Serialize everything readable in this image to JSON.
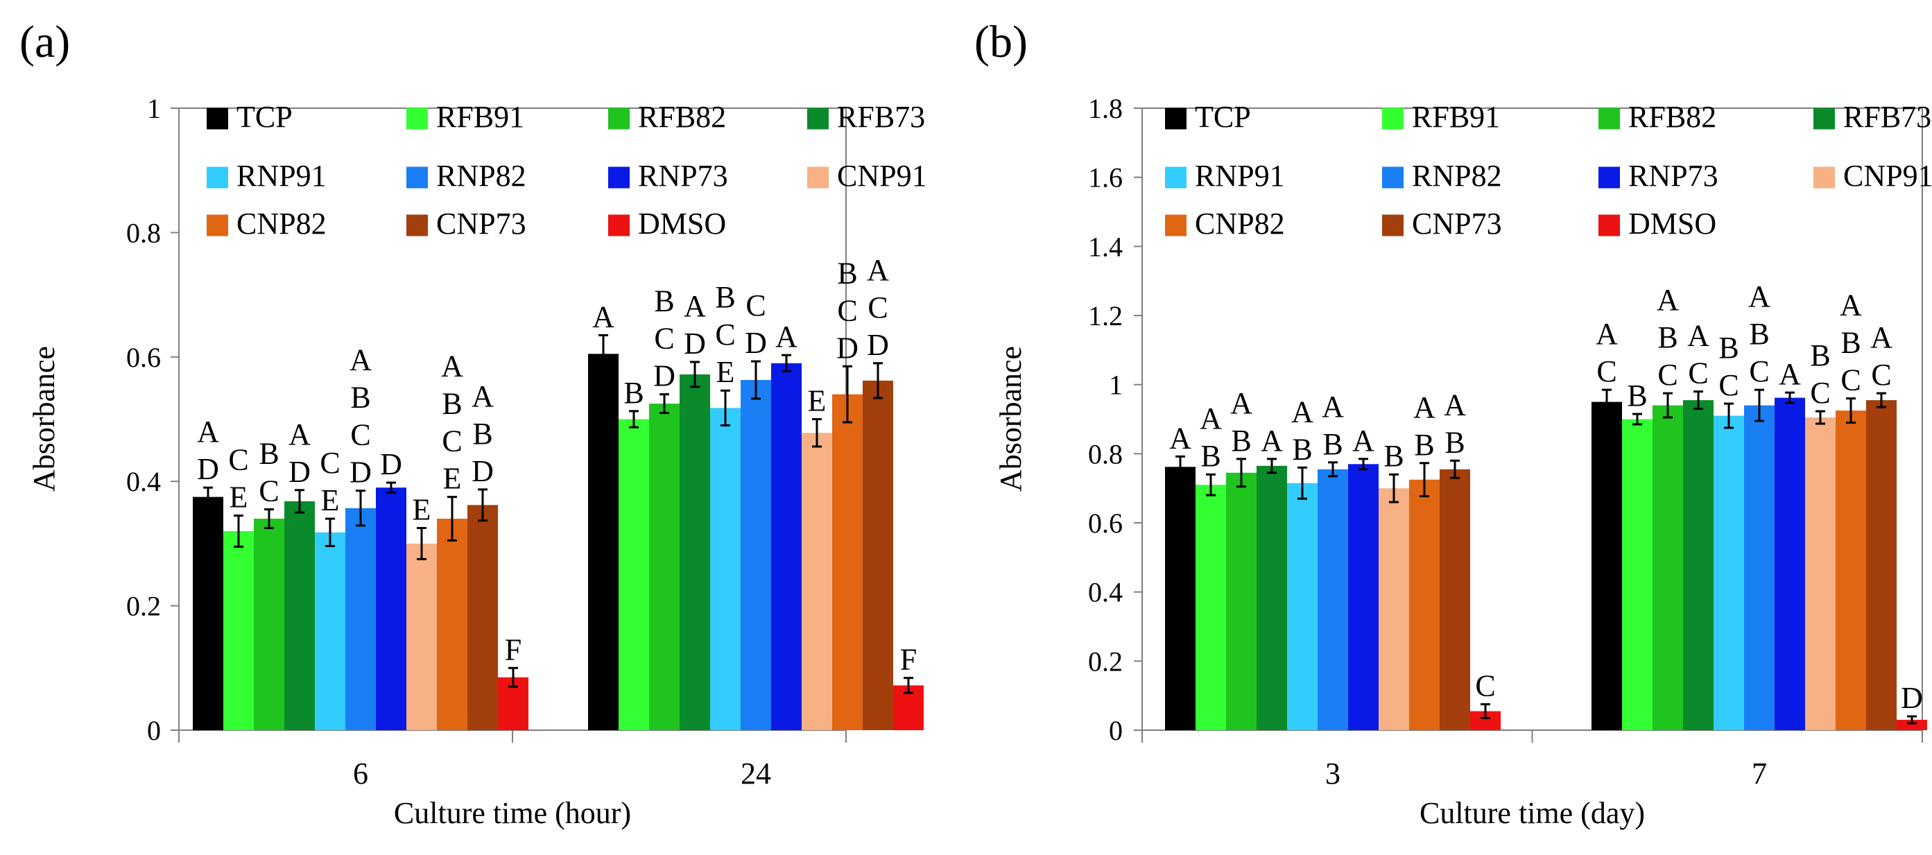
{
  "colors": {
    "TCP": "#000000",
    "RFB91": "#33ff33",
    "RFB82": "#1fc41f",
    "RFB73": "#0a8a2a",
    "RNP91": "#33ccff",
    "RNP82": "#1a7ef5",
    "RNP73": "#0a1ae6",
    "CNP91": "#f7b184",
    "CNP82": "#e06614",
    "CNP73": "#a33f0c",
    "DMSO": "#ee1111"
  },
  "chart_data": [
    {
      "panel": "(a)",
      "type": "bar",
      "xlabel": "Culture time (hour)",
      "ylabel": "Absorbance",
      "ylim": [
        0,
        1
      ],
      "yticks": [
        "0",
        "0.2",
        "0.4",
        "0.6",
        "0.8",
        "1"
      ],
      "legend": [
        "TCP",
        "RFB91",
        "RFB82",
        "RFB73",
        "RNP91",
        "RNP82",
        "RNP73",
        "CNP91",
        "CNP82",
        "CNP73",
        "DMSO"
      ],
      "legend_position": "top",
      "categories": [
        "6",
        "24"
      ],
      "series": [
        {
          "name": "TCP",
          "values": [
            0.375,
            0.605
          ],
          "errors": [
            0.015,
            0.03
          ],
          "labels": [
            "A\nD",
            "A"
          ]
        },
        {
          "name": "RFB91",
          "values": [
            0.32,
            0.5
          ],
          "errors": [
            0.025,
            0.013
          ],
          "labels": [
            "C\nE",
            "B"
          ]
        },
        {
          "name": "RFB82",
          "values": [
            0.34,
            0.525
          ],
          "errors": [
            0.015,
            0.015
          ],
          "labels": [
            "B\nC",
            "B\nC\nD"
          ]
        },
        {
          "name": "RFB73",
          "values": [
            0.368,
            0.572
          ],
          "errors": [
            0.018,
            0.02
          ],
          "labels": [
            "A\nD",
            "A\nD"
          ]
        },
        {
          "name": "RNP91",
          "values": [
            0.318,
            0.518
          ],
          "errors": [
            0.022,
            0.028
          ],
          "labels": [
            "C\nE",
            "B\nC\nE"
          ]
        },
        {
          "name": "RNP82",
          "values": [
            0.357,
            0.563
          ],
          "errors": [
            0.028,
            0.03
          ],
          "labels": [
            "A\nB\nC\nD",
            "C\nD"
          ]
        },
        {
          "name": "RNP73",
          "values": [
            0.39,
            0.59
          ],
          "errors": [
            0.008,
            0.013
          ],
          "labels": [
            "D",
            "A"
          ]
        },
        {
          "name": "CNP91",
          "values": [
            0.3,
            0.478
          ],
          "errors": [
            0.025,
            0.022
          ],
          "labels": [
            "E",
            "E"
          ]
        },
        {
          "name": "CNP82",
          "values": [
            0.34,
            0.54
          ],
          "errors": [
            0.035,
            0.045
          ],
          "labels": [
            "A\nB\nC\nE",
            "B\nC\nD"
          ]
        },
        {
          "name": "CNP73",
          "values": [
            0.362,
            0.562
          ],
          "errors": [
            0.025,
            0.028
          ],
          "labels": [
            "A\nB\nD",
            "A\nC\nD"
          ]
        },
        {
          "name": "DMSO",
          "values": [
            0.085,
            0.072
          ],
          "errors": [
            0.015,
            0.012
          ],
          "labels": [
            "F",
            "F"
          ]
        }
      ]
    },
    {
      "panel": "(b)",
      "type": "bar",
      "xlabel": "Culture time (day)",
      "ylabel": "Absorbance",
      "ylim": [
        0,
        1.8
      ],
      "yticks": [
        "0",
        "0.2",
        "0.4",
        "0.6",
        "0.8",
        "1",
        "1.2",
        "1.4",
        "1.6",
        "1.8"
      ],
      "legend": [
        "TCP",
        "RFB91",
        "RFB82",
        "RFB73",
        "RNP91",
        "RNP82",
        "RNP73",
        "CNP91",
        "CNP82",
        "CNP73",
        "DMSO"
      ],
      "legend_position": "top",
      "categories": [
        "3",
        "7"
      ],
      "series": [
        {
          "name": "TCP",
          "values": [
            0.762,
            0.95
          ],
          "errors": [
            0.03,
            0.035
          ],
          "labels": [
            "A",
            "A\nC"
          ]
        },
        {
          "name": "RFB91",
          "values": [
            0.71,
            0.9
          ],
          "errors": [
            0.03,
            0.015
          ],
          "labels": [
            "A\nB",
            "B"
          ]
        },
        {
          "name": "RFB82",
          "values": [
            0.745,
            0.94
          ],
          "errors": [
            0.04,
            0.035
          ],
          "labels": [
            "A\nB",
            "A\nB\nC"
          ]
        },
        {
          "name": "RFB73",
          "values": [
            0.765,
            0.955
          ],
          "errors": [
            0.02,
            0.025
          ],
          "labels": [
            "A",
            "A\nC"
          ]
        },
        {
          "name": "RNP91",
          "values": [
            0.715,
            0.91
          ],
          "errors": [
            0.045,
            0.035
          ],
          "labels": [
            "A\nB",
            "B\nC"
          ]
        },
        {
          "name": "RNP82",
          "values": [
            0.755,
            0.94
          ],
          "errors": [
            0.02,
            0.045
          ],
          "labels": [
            "A\nB",
            "A\nB\nC"
          ]
        },
        {
          "name": "RNP73",
          "values": [
            0.77,
            0.962
          ],
          "errors": [
            0.015,
            0.015
          ],
          "labels": [
            "A",
            "A"
          ]
        },
        {
          "name": "CNP91",
          "values": [
            0.7,
            0.905
          ],
          "errors": [
            0.04,
            0.018
          ],
          "labels": [
            "B",
            "B\nC"
          ]
        },
        {
          "name": "CNP82",
          "values": [
            0.725,
            0.925
          ],
          "errors": [
            0.048,
            0.035
          ],
          "labels": [
            "A\nB",
            "A\nB\nC"
          ]
        },
        {
          "name": "CNP73",
          "values": [
            0.755,
            0.955
          ],
          "errors": [
            0.025,
            0.02
          ],
          "labels": [
            "A\nB",
            "A\nC"
          ]
        },
        {
          "name": "DMSO",
          "values": [
            0.055,
            0.03
          ],
          "errors": [
            0.02,
            0.01
          ],
          "labels": [
            "C",
            "D"
          ]
        }
      ]
    }
  ]
}
